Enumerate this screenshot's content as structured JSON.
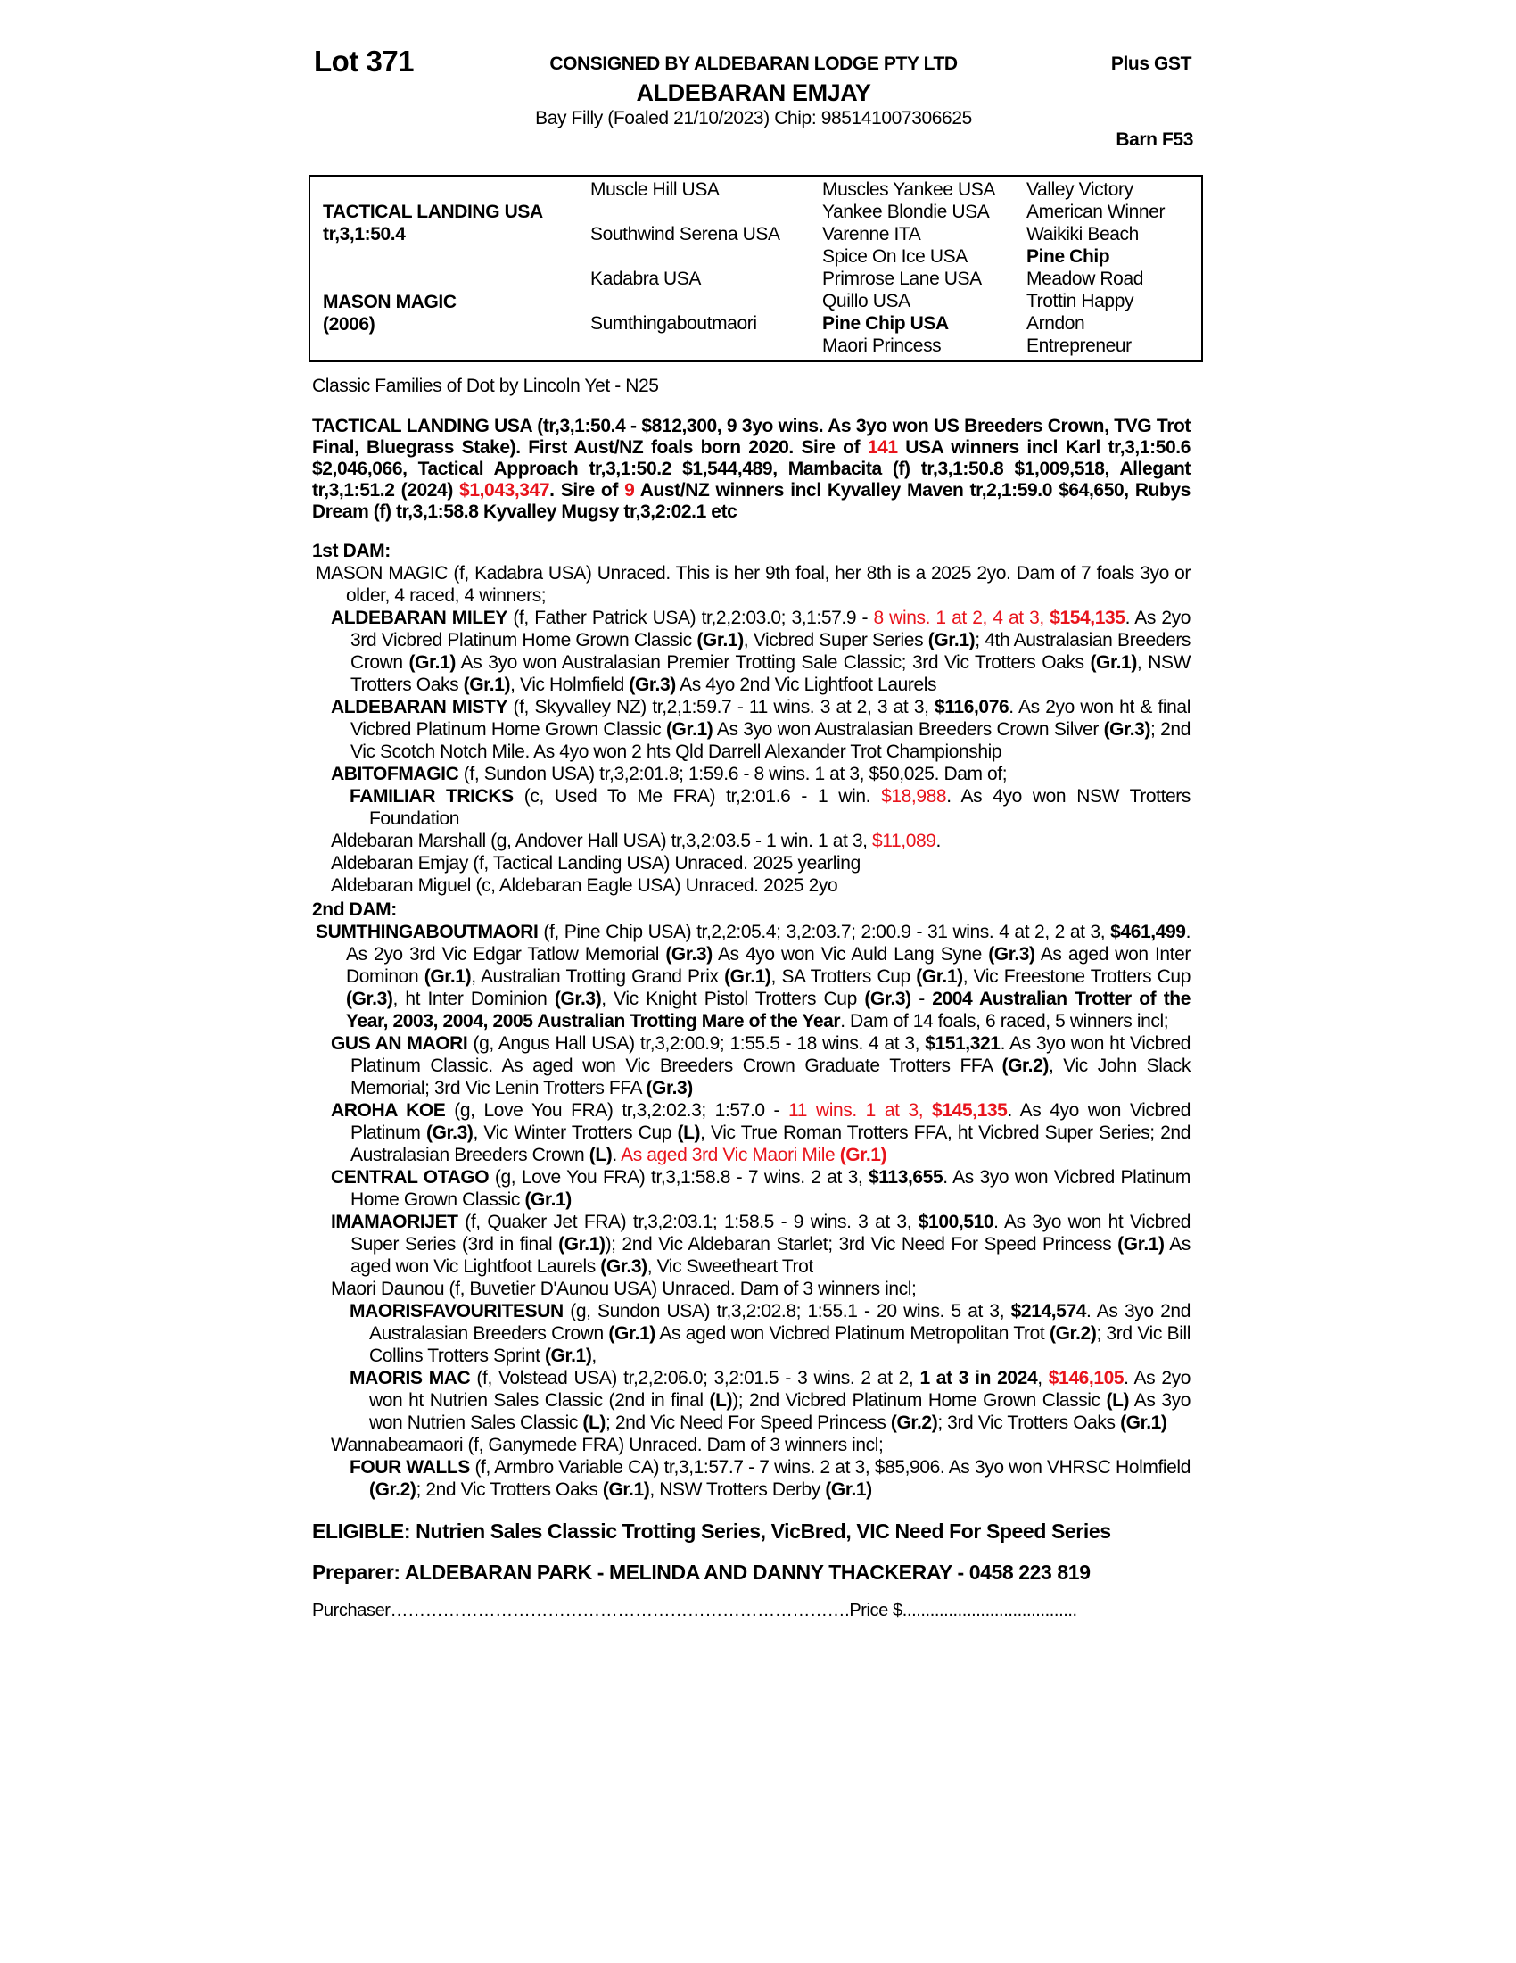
{
  "header": {
    "lot": "Lot 371",
    "consigned": "CONSIGNED BY ALDEBARAN LODGE PTY LTD",
    "gst": "Plus GST",
    "horse": "ALDEBARAN EMJAY",
    "description": "Bay Filly (Foaled 21/10/2023) Chip: 985141007306625",
    "barn": "Barn F53"
  },
  "pedigree": {
    "sire": "TACTICAL LANDING USA",
    "sire_record": "tr,3,1:50.4",
    "dam": "MASON MAGIC",
    "dam_year": "(2006)",
    "gen2": [
      "Muscle Hill USA",
      "Southwind Serena USA",
      "Kadabra USA",
      "Sumthingaboutmaori"
    ],
    "gen3": [
      "Muscles Yankee USA",
      "Yankee Blondie USA",
      "Varenne ITA",
      "Spice On Ice USA",
      "Primrose Lane USA",
      "Quillo USA",
      "Pine Chip USA",
      "Maori Princess"
    ],
    "gen3_bold": [
      false,
      false,
      false,
      false,
      false,
      false,
      true,
      false
    ],
    "gen4": [
      "Valley Victory",
      "American Winner",
      "Waikiki Beach",
      "Pine Chip",
      "Meadow Road",
      "Trottin Happy",
      "Arndon",
      "Entrepreneur"
    ],
    "gen4_bold": [
      false,
      false,
      false,
      true,
      false,
      false,
      false,
      false
    ]
  },
  "families": "Classic Families of Dot by Lincoln Yet - N25",
  "sire_para": [
    [
      "TACTICAL LANDING USA (tr,3,1:50.4 - $812,300, 9 3yo wins. As 3yo won US Breeders Crown, TVG Trot Final, Bluegrass Stake). First Aust/NZ foals born 2020. Sire of ",
      ""
    ],
    [
      "141",
      "r"
    ],
    [
      " USA winners incl Karl tr,3,1:50.6 $2,046,066, Tactical Approach tr,3,1:50.2 $1,544,489, Mambacita (f) tr,3,1:50.8 $1,009,518, Allegant tr,3,1:51.2 (2024) ",
      ""
    ],
    [
      "$1,043,347",
      "r"
    ],
    [
      ". Sire of ",
      ""
    ],
    [
      "9",
      "r"
    ],
    [
      " Aust/NZ winners incl Kyvalley Maven tr,2,1:59.0 $64,650, Rubys Dream (f) tr,3,1:58.8 Kyvalley Mugsy tr,3,2:02.1 etc",
      ""
    ]
  ],
  "dam1": {
    "heading": "1st DAM:",
    "entries": [
      {
        "level": 0,
        "segs": [
          [
            "MASON MAGIC (f, Kadabra USA) Unraced. This is her 9th foal, her 8th is a 2025 2yo. Dam of 7 foals 3yo or older, 4 raced, 4 winners;",
            ""
          ]
        ]
      },
      {
        "level": 1,
        "segs": [
          [
            "ALDEBARAN MILEY",
            "b"
          ],
          [
            " (f, Father Patrick USA) tr,2,2:03.0; 3,1:57.9 - ",
            ""
          ],
          [
            "8 wins. 1 at 2, 4 at 3, ",
            "r"
          ],
          [
            "$154,135",
            "rb"
          ],
          [
            ". As 2yo 3rd Vicbred Platinum Home Grown Classic ",
            ""
          ],
          [
            "(Gr.1)",
            "b"
          ],
          [
            ", Vicbred Super Series ",
            ""
          ],
          [
            "(Gr.1)",
            "b"
          ],
          [
            "; 4th Australasian Breeders Crown ",
            ""
          ],
          [
            "(Gr.1)",
            "b"
          ],
          [
            " As 3yo won Australasian Premier Trotting Sale Classic; 3rd Vic Trotters Oaks ",
            ""
          ],
          [
            "(Gr.1)",
            "b"
          ],
          [
            ", NSW Trotters Oaks ",
            ""
          ],
          [
            "(Gr.1)",
            "b"
          ],
          [
            ", Vic Holmfield ",
            ""
          ],
          [
            "(Gr.3)",
            "b"
          ],
          [
            " As 4yo 2nd Vic Lightfoot Laurels",
            ""
          ]
        ]
      },
      {
        "level": 1,
        "segs": [
          [
            "ALDEBARAN MISTY",
            "b"
          ],
          [
            " (f, Skyvalley NZ) tr,2,1:59.7 - 11 wins. 3 at 2, 3 at 3, ",
            ""
          ],
          [
            "$116,076",
            "b"
          ],
          [
            ". As 2yo won ht & final Vicbred Platinum Home Grown Classic ",
            ""
          ],
          [
            "(Gr.1)",
            "b"
          ],
          [
            " As 3yo won Australasian Breeders Crown Silver ",
            ""
          ],
          [
            "(Gr.3)",
            "b"
          ],
          [
            "; 2nd Vic Scotch Notch Mile. As 4yo won 2 hts Qld Darrell Alexander Trot Championship",
            ""
          ]
        ]
      },
      {
        "level": 1,
        "segs": [
          [
            "ABITOFMAGIC",
            "b"
          ],
          [
            " (f, Sundon USA) tr,3,2:01.8; 1:59.6 - 8 wins. 1 at 3, $50,025. Dam of;",
            ""
          ]
        ]
      },
      {
        "level": 2,
        "segs": [
          [
            "FAMILIAR TRICKS",
            "b"
          ],
          [
            " (c, Used To Me FRA) tr,2:01.6 - 1 win. ",
            ""
          ],
          [
            "$18,988",
            "r"
          ],
          [
            ". As 4yo won NSW Trotters Foundation",
            ""
          ]
        ]
      },
      {
        "level": 1,
        "segs": [
          [
            "Aldebaran Marshall (g, Andover Hall USA) tr,3,2:03.5 - 1 win. 1 at 3, ",
            ""
          ],
          [
            "$11,089",
            "r"
          ],
          [
            ".",
            ""
          ]
        ]
      },
      {
        "level": 1,
        "segs": [
          [
            "Aldebaran Emjay (f, Tactical Landing USA) Unraced. 2025 yearling",
            ""
          ]
        ]
      },
      {
        "level": 1,
        "segs": [
          [
            "Aldebaran Miguel (c, Aldebaran Eagle USA) Unraced. 2025 2yo",
            ""
          ]
        ]
      }
    ]
  },
  "dam2": {
    "heading": "2nd DAM:",
    "entries": [
      {
        "level": 0,
        "segs": [
          [
            "SUMTHINGABOUTMAORI",
            "b"
          ],
          [
            " (f, Pine Chip USA) tr,2,2:05.4; 3,2:03.7; 2:00.9 - 31 wins. 4 at 2, 2 at 3, ",
            ""
          ],
          [
            "$461,499",
            "b"
          ],
          [
            ". As 2yo 3rd Vic Edgar Tatlow Memorial ",
            ""
          ],
          [
            "(Gr.3)",
            "b"
          ],
          [
            " As 4yo won Vic Auld Lang Syne ",
            ""
          ],
          [
            "(Gr.3)",
            "b"
          ],
          [
            " As aged won Inter Dominon ",
            ""
          ],
          [
            "(Gr.1)",
            "b"
          ],
          [
            ", Australian Trotting Grand Prix ",
            ""
          ],
          [
            "(Gr.1)",
            "b"
          ],
          [
            ", SA Trotters Cup ",
            ""
          ],
          [
            "(Gr.1)",
            "b"
          ],
          [
            ", Vic Freestone Trotters Cup ",
            ""
          ],
          [
            "(Gr.3)",
            "b"
          ],
          [
            ", ht Inter Dominion ",
            ""
          ],
          [
            "(Gr.3)",
            "b"
          ],
          [
            ", Vic Knight Pistol Trotters Cup ",
            ""
          ],
          [
            "(Gr.3)",
            "b"
          ],
          [
            " - ",
            ""
          ],
          [
            "2004 Australian Trotter of the Year, 2003, 2004, 2005 Australian Trotting Mare of the Year",
            "b"
          ],
          [
            ". Dam of 14 foals, 6 raced, 5 winners incl;",
            ""
          ]
        ]
      },
      {
        "level": 1,
        "segs": [
          [
            "GUS AN MAORI",
            "b"
          ],
          [
            " (g, Angus Hall USA) tr,3,2:00.9; 1:55.5 - 18 wins. 4 at 3, ",
            ""
          ],
          [
            "$151,321",
            "b"
          ],
          [
            ". As 3yo won ht Vicbred Platinum Classic. As aged won Vic Breeders Crown Graduate Trotters FFA ",
            ""
          ],
          [
            "(Gr.2)",
            "b"
          ],
          [
            ", Vic John Slack Memorial; 3rd Vic Lenin Trotters FFA ",
            ""
          ],
          [
            "(Gr.3)",
            "b"
          ]
        ]
      },
      {
        "level": 1,
        "segs": [
          [
            "AROHA KOE",
            "b"
          ],
          [
            " (g, Love You FRA) tr,3,2:02.3; 1:57.0 - ",
            ""
          ],
          [
            "11 wins. 1 at 3, ",
            "r"
          ],
          [
            "$145,135",
            "rb"
          ],
          [
            ". As 4yo won Vicbred Platinum ",
            ""
          ],
          [
            "(Gr.3)",
            "b"
          ],
          [
            ", Vic Winter Trotters Cup ",
            ""
          ],
          [
            "(L)",
            "b"
          ],
          [
            ", Vic True Roman Trotters FFA, ht Vicbred Super Series; 2nd Australasian Breeders Crown ",
            ""
          ],
          [
            "(L)",
            "b"
          ],
          [
            ". ",
            ""
          ],
          [
            "As aged 3rd Vic Maori Mile ",
            "r"
          ],
          [
            "(Gr.1)",
            "rb"
          ]
        ]
      },
      {
        "level": 1,
        "segs": [
          [
            "CENTRAL OTAGO",
            "b"
          ],
          [
            " (g, Love You FRA) tr,3,1:58.8 - 7 wins. 2 at 3, ",
            ""
          ],
          [
            "$113,655",
            "b"
          ],
          [
            ". As 3yo won Vicbred Platinum Home Grown Classic ",
            ""
          ],
          [
            "(Gr.1)",
            "b"
          ]
        ]
      },
      {
        "level": 1,
        "segs": [
          [
            "IMAMAORIJET",
            "b"
          ],
          [
            " (f, Quaker Jet FRA) tr,3,2:03.1; 1:58.5 - 9 wins. 3 at 3, ",
            ""
          ],
          [
            "$100,510",
            "b"
          ],
          [
            ". As 3yo won ht Vicbred Super Series (3rd in final ",
            ""
          ],
          [
            "(Gr.1)",
            "b"
          ],
          [
            "); 2nd Vic Aldebaran Starlet; 3rd Vic Need For Speed Princess ",
            ""
          ],
          [
            "(Gr.1)",
            "b"
          ],
          [
            " As aged won Vic Lightfoot Laurels ",
            ""
          ],
          [
            "(Gr.3)",
            "b"
          ],
          [
            ", Vic Sweetheart Trot",
            ""
          ]
        ]
      },
      {
        "level": 1,
        "segs": [
          [
            "Maori Daunou (f, Buvetier D'Aunou USA) Unraced. Dam of 3 winners incl;",
            ""
          ]
        ]
      },
      {
        "level": 2,
        "segs": [
          [
            "MAORISFAVOURITESUN",
            "b"
          ],
          [
            " (g, Sundon USA) tr,3,2:02.8; 1:55.1 - 20 wins. 5 at 3, ",
            ""
          ],
          [
            "$214,574",
            "b"
          ],
          [
            ". As 3yo 2nd Australasian Breeders Crown ",
            ""
          ],
          [
            "(Gr.1)",
            "b"
          ],
          [
            " As aged won Vicbred Platinum Metropolitan Trot ",
            ""
          ],
          [
            "(Gr.2)",
            "b"
          ],
          [
            "; 3rd Vic Bill Collins Trotters Sprint ",
            ""
          ],
          [
            "(Gr.1)",
            "b"
          ],
          [
            ",",
            ""
          ]
        ]
      },
      {
        "level": 2,
        "segs": [
          [
            "MAORIS MAC",
            "b"
          ],
          [
            " (f, Volstead USA) tr,2,2:06.0; 3,2:01.5 - 3 wins. 2 at 2, ",
            ""
          ],
          [
            "1 at 3 in 2024",
            "b"
          ],
          [
            ", ",
            ""
          ],
          [
            "$146,105",
            "rb"
          ],
          [
            ". As 2yo won ht Nutrien Sales Classic (2nd in final ",
            ""
          ],
          [
            "(L)",
            "b"
          ],
          [
            "); 2nd Vicbred Platinum Home Grown Classic ",
            ""
          ],
          [
            "(L)",
            "b"
          ],
          [
            " As 3yo won Nutrien Sales Classic ",
            ""
          ],
          [
            "(L)",
            "b"
          ],
          [
            "; 2nd Vic Need For Speed Princess ",
            ""
          ],
          [
            "(Gr.2)",
            "b"
          ],
          [
            "; 3rd Vic Trotters Oaks ",
            ""
          ],
          [
            "(Gr.1)",
            "b"
          ]
        ]
      },
      {
        "level": 1,
        "segs": [
          [
            "Wannabeamaori (f, Ganymede FRA) Unraced. Dam of 3 winners incl;",
            ""
          ]
        ]
      },
      {
        "level": 2,
        "segs": [
          [
            "FOUR WALLS",
            "b"
          ],
          [
            " (f, Armbro Variable CA) tr,3,1:57.7 - 7 wins. 2 at 3, $85,906. As 3yo won VHRSC Holmfield ",
            ""
          ],
          [
            "(Gr.2)",
            "b"
          ],
          [
            "; 2nd Vic Trotters Oaks ",
            ""
          ],
          [
            "(Gr.1)",
            "b"
          ],
          [
            ", NSW Trotters Derby ",
            ""
          ],
          [
            "(Gr.1)",
            "b"
          ]
        ]
      }
    ]
  },
  "eligible": "ELIGIBLE: Nutrien Sales Classic Trotting Series, VicBred, VIC Need For Speed Series",
  "preparer": "Preparer: ALDEBARAN PARK - MELINDA AND DANNY THACKERAY - 0458 223 819",
  "purchaser": {
    "label": "Purchaser…………………………………………………………………….",
    "price_label": "Price $......................................"
  },
  "colors": {
    "highlight": "#e8141c",
    "text": "#000000"
  }
}
